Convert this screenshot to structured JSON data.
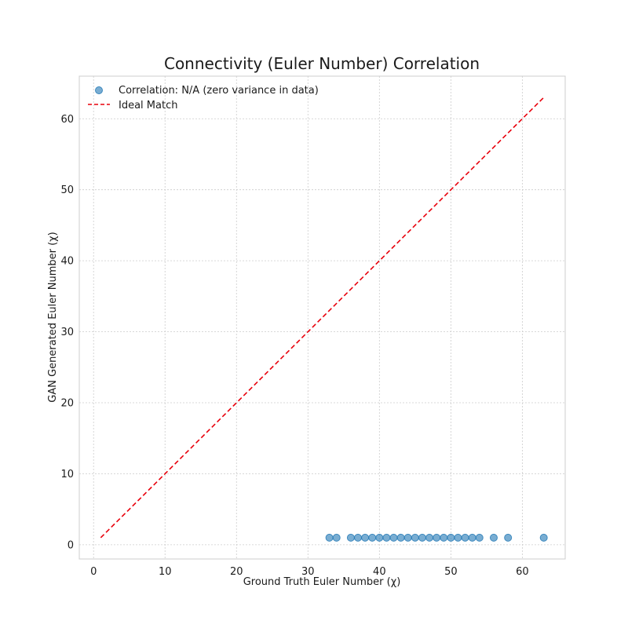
{
  "chart_data": {
    "type": "scatter",
    "title": "Connectivity (Euler Number) Correlation",
    "xlabel": "Ground Truth Euler Number (χ)",
    "ylabel": "GAN Generated Euler Number (χ)",
    "xlim": [
      -2,
      66
    ],
    "ylim": [
      -2,
      66
    ],
    "xticks": [
      0,
      10,
      20,
      30,
      40,
      50,
      60
    ],
    "yticks": [
      0,
      10,
      20,
      30,
      40,
      50,
      60
    ],
    "grid": true,
    "legend_position": "top-left",
    "series": [
      {
        "name": "Correlation: N/A (zero variance in data)",
        "kind": "scatter",
        "color": "#1f77b4",
        "points": [
          [
            33,
            1
          ],
          [
            34,
            1
          ],
          [
            36,
            1
          ],
          [
            37,
            1
          ],
          [
            38,
            1
          ],
          [
            39,
            1
          ],
          [
            40,
            1
          ],
          [
            41,
            1
          ],
          [
            42,
            1
          ],
          [
            43,
            1
          ],
          [
            44,
            1
          ],
          [
            45,
            1
          ],
          [
            46,
            1
          ],
          [
            47,
            1
          ],
          [
            48,
            1
          ],
          [
            49,
            1
          ],
          [
            50,
            1
          ],
          [
            51,
            1
          ],
          [
            52,
            1
          ],
          [
            53,
            1
          ],
          [
            54,
            1
          ],
          [
            56,
            1
          ],
          [
            58,
            1
          ],
          [
            63,
            1
          ]
        ]
      },
      {
        "name": "Ideal Match",
        "kind": "line",
        "color": "#e8000b",
        "dashed": true,
        "points": [
          [
            1,
            1
          ],
          [
            63,
            63
          ]
        ]
      }
    ]
  }
}
